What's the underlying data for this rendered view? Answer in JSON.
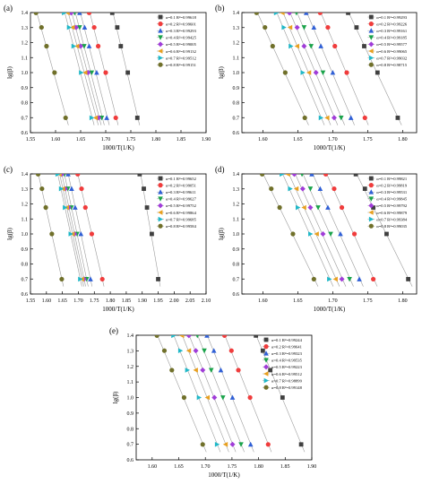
{
  "figure": {
    "panels": [
      "(a)",
      "(b)",
      "(c)",
      "(d)",
      "(e)"
    ]
  },
  "chart_data": [
    {
      "panel": "(a)",
      "type": "scatter",
      "xlabel": "1000/T(1/K)",
      "ylabel": "lg(β)",
      "xlim": [
        1.55,
        1.9
      ],
      "ylim": [
        0.6,
        1.4
      ],
      "xticks": [
        "1.55",
        "1.60",
        "1.65",
        "1.70",
        "1.75",
        "1.80",
        "1.85",
        "1.90"
      ],
      "yticks": [
        "0.6",
        "0.7",
        "0.8",
        "0.9",
        "1.0",
        "1.1",
        "1.2",
        "1.3",
        "1.4"
      ],
      "legend_position": "top-right",
      "series": [
        {
          "name": "α=0.1 R²=0.99618",
          "color": "#404040",
          "marker": "square",
          "x": [
            1.763,
            1.744,
            1.73,
            1.723,
            1.713
          ],
          "y": [
            0.699,
            1.0,
            1.176,
            1.301,
            1.398
          ]
        },
        {
          "name": "α=0.2 R²=0.99601",
          "color": "#f03c3c",
          "marker": "circle",
          "x": [
            1.72,
            1.7,
            1.685,
            1.677,
            1.667
          ],
          "y": [
            0.699,
            1.0,
            1.176,
            1.301,
            1.398
          ]
        },
        {
          "name": "α=0.3 R²=0.99293",
          "color": "#2f5fd6",
          "marker": "triangle",
          "x": [
            1.702,
            1.682,
            1.667,
            1.658,
            1.648
          ],
          "y": [
            0.699,
            1.0,
            1.176,
            1.301,
            1.398
          ]
        },
        {
          "name": "α=0.4 R²=0.99425",
          "color": "#1aa34a",
          "marker": "triangle-down",
          "x": [
            1.692,
            1.672,
            1.657,
            1.648,
            1.638
          ],
          "y": [
            0.699,
            1.0,
            1.176,
            1.301,
            1.398
          ]
        },
        {
          "name": "α=0.5 R²=0.99005",
          "color": "#a03cd8",
          "marker": "diamond",
          "x": [
            1.686,
            1.665,
            1.65,
            1.641,
            1.631
          ],
          "y": [
            0.699,
            1.0,
            1.176,
            1.301,
            1.398
          ]
        },
        {
          "name": "α=0.6 R²=0.99132",
          "color": "#e8a020",
          "marker": "triangle-left",
          "x": [
            1.68,
            1.659,
            1.643,
            1.634,
            1.624
          ],
          "y": [
            0.699,
            1.0,
            1.176,
            1.301,
            1.398
          ]
        },
        {
          "name": "α=0.7 R²=0.99512",
          "color": "#20b8c8",
          "marker": "triangle-right",
          "x": [
            1.672,
            1.651,
            1.636,
            1.627,
            1.617
          ],
          "y": [
            0.699,
            1.0,
            1.176,
            1.301,
            1.398
          ]
        },
        {
          "name": "α=0.8 R²=0.99151",
          "color": "#70702a",
          "marker": "circle",
          "x": [
            1.62,
            1.598,
            1.582,
            1.572,
            1.561
          ],
          "y": [
            0.699,
            1.0,
            1.176,
            1.301,
            1.398
          ]
        }
      ]
    },
    {
      "panel": "(b)",
      "type": "scatter",
      "xlabel": "1000/T(1/K)",
      "ylabel": "lg(β)",
      "xlim": [
        1.57,
        1.82
      ],
      "ylim": [
        0.6,
        1.4
      ],
      "xticks": [
        "1.60",
        "1.65",
        "1.70",
        "1.75",
        "1.80"
      ],
      "yticks": [
        "0.6",
        "0.7",
        "0.8",
        "0.9",
        "1.0",
        "1.1",
        "1.2",
        "1.3",
        "1.4"
      ],
      "legend_position": "top-right",
      "series": [
        {
          "name": "α=0.1 R²=0.99293",
          "color": "#404040",
          "marker": "square",
          "x": [
            1.793,
            1.764,
            1.745,
            1.734,
            1.722
          ],
          "y": [
            0.699,
            1.0,
            1.176,
            1.301,
            1.398
          ]
        },
        {
          "name": "α=0.2 R²=0.99226",
          "color": "#f03c3c",
          "marker": "circle",
          "x": [
            1.746,
            1.72,
            1.703,
            1.693,
            1.682
          ],
          "y": [
            0.699,
            1.0,
            1.176,
            1.301,
            1.398
          ]
        },
        {
          "name": "α=0.3 R²=0.99161",
          "color": "#2f5fd6",
          "marker": "triangle",
          "x": [
            1.726,
            1.7,
            1.683,
            1.673,
            1.662
          ],
          "y": [
            0.699,
            1.0,
            1.176,
            1.301,
            1.398
          ]
        },
        {
          "name": "α=0.4 R²=0.99185",
          "color": "#1aa34a",
          "marker": "triangle-down",
          "x": [
            1.712,
            1.686,
            1.669,
            1.659,
            1.648
          ],
          "y": [
            0.699,
            1.0,
            1.176,
            1.301,
            1.398
          ]
        },
        {
          "name": "α=0.5 R²=0.99577",
          "color": "#a03cd8",
          "marker": "diamond",
          "x": [
            1.702,
            1.676,
            1.659,
            1.649,
            1.638
          ],
          "y": [
            0.699,
            1.0,
            1.176,
            1.301,
            1.398
          ]
        },
        {
          "name": "α=0.6 R²=0.99065",
          "color": "#e8a020",
          "marker": "triangle-left",
          "x": [
            1.692,
            1.666,
            1.649,
            1.639,
            1.628
          ],
          "y": [
            0.699,
            1.0,
            1.176,
            1.301,
            1.398
          ]
        },
        {
          "name": "α=0.7 R²=0.99032",
          "color": "#20b8c8",
          "marker": "triangle-right",
          "x": [
            1.683,
            1.657,
            1.64,
            1.63,
            1.619
          ],
          "y": [
            0.699,
            1.0,
            1.176,
            1.301,
            1.398
          ]
        },
        {
          "name": "α=0.8 R²=0.98715",
          "color": "#70702a",
          "marker": "circle",
          "x": [
            1.66,
            1.632,
            1.614,
            1.603,
            1.591
          ],
          "y": [
            0.699,
            1.0,
            1.176,
            1.301,
            1.398
          ]
        }
      ]
    },
    {
      "panel": "(c)",
      "type": "scatter",
      "xlabel": "1000/T(1/K)",
      "ylabel": "lg(β)",
      "xlim": [
        1.55,
        2.1
      ],
      "ylim": [
        0.6,
        1.4
      ],
      "xticks": [
        "1.55",
        "1.60",
        "1.65",
        "1.70",
        "1.75",
        "1.80",
        "1.85",
        "1.90",
        "1.95",
        "2.00",
        "2.05",
        "2.10"
      ],
      "yticks": [
        "0.6",
        "0.7",
        "0.8",
        "0.9",
        "1.0",
        "1.1",
        "1.2",
        "1.3",
        "1.4"
      ],
      "legend_position": "top-right",
      "series": [
        {
          "name": "α=0.1 R²=0.99652",
          "color": "#404040",
          "marker": "square",
          "x": [
            1.95,
            1.93,
            1.915,
            1.905,
            1.892
          ],
          "y": [
            0.699,
            1.0,
            1.176,
            1.301,
            1.398
          ]
        },
        {
          "name": "α=0.2 R²=0.99051",
          "color": "#f03c3c",
          "marker": "circle",
          "x": [
            1.775,
            1.742,
            1.722,
            1.71,
            1.698
          ],
          "y": [
            0.699,
            1.0,
            1.176,
            1.301,
            1.398
          ]
        },
        {
          "name": "α=0.3 R²=0.99611",
          "color": "#2f5fd6",
          "marker": "triangle",
          "x": [
            1.738,
            1.708,
            1.69,
            1.679,
            1.668
          ],
          "y": [
            0.699,
            1.0,
            1.176,
            1.301,
            1.398
          ]
        },
        {
          "name": "α=0.4 R²=0.99627",
          "color": "#1aa34a",
          "marker": "triangle-down",
          "x": [
            1.726,
            1.696,
            1.678,
            1.667,
            1.656
          ],
          "y": [
            0.699,
            1.0,
            1.176,
            1.301,
            1.398
          ]
        },
        {
          "name": "α=0.5 R²=0.99752",
          "color": "#a03cd8",
          "marker": "diamond",
          "x": [
            1.718,
            1.688,
            1.67,
            1.659,
            1.648
          ],
          "y": [
            0.699,
            1.0,
            1.176,
            1.301,
            1.398
          ]
        },
        {
          "name": "α=0.6 R²=0.99864",
          "color": "#e8a020",
          "marker": "triangle-left",
          "x": [
            1.712,
            1.682,
            1.664,
            1.652,
            1.641
          ],
          "y": [
            0.699,
            1.0,
            1.176,
            1.301,
            1.398
          ]
        },
        {
          "name": "α=0.7 R²=0.99685",
          "color": "#20b8c8",
          "marker": "triangle-right",
          "x": [
            1.706,
            1.676,
            1.658,
            1.646,
            1.635
          ],
          "y": [
            0.699,
            1.0,
            1.176,
            1.301,
            1.398
          ]
        },
        {
          "name": "α=0.8 R²=0.99584",
          "color": "#70702a",
          "marker": "circle",
          "x": [
            1.648,
            1.617,
            1.598,
            1.586,
            1.574
          ],
          "y": [
            0.699,
            1.0,
            1.176,
            1.301,
            1.398
          ]
        }
      ]
    },
    {
      "panel": "(d)",
      "type": "scatter",
      "xlabel": "1000/T(1/K)",
      "ylabel": "lg(β)",
      "xlim": [
        1.57,
        1.82
      ],
      "ylim": [
        0.6,
        1.4
      ],
      "xticks": [
        "1.60",
        "1.65",
        "1.70",
        "1.75",
        "1.80"
      ],
      "yticks": [
        "0.6",
        "0.7",
        "0.8",
        "0.9",
        "1.0",
        "1.1",
        "1.2",
        "1.3",
        "1.4"
      ],
      "legend_position": "top-right",
      "series": [
        {
          "name": "α=0.1 R²=0.99821",
          "color": "#404040",
          "marker": "square",
          "x": [
            1.808,
            1.777,
            1.758,
            1.746,
            1.733
          ],
          "y": [
            0.699,
            1.0,
            1.176,
            1.301,
            1.398
          ]
        },
        {
          "name": "α=0.2 R²=0.99819",
          "color": "#f03c3c",
          "marker": "circle",
          "x": [
            1.758,
            1.731,
            1.713,
            1.702,
            1.69
          ],
          "y": [
            0.699,
            1.0,
            1.176,
            1.301,
            1.398
          ]
        },
        {
          "name": "α=0.3 R²=0.99531",
          "color": "#2f5fd6",
          "marker": "triangle",
          "x": [
            1.738,
            1.711,
            1.693,
            1.682,
            1.67
          ],
          "y": [
            0.699,
            1.0,
            1.176,
            1.301,
            1.398
          ]
        },
        {
          "name": "α=0.4 R²=0.99845",
          "color": "#1aa34a",
          "marker": "triangle-down",
          "x": [
            1.724,
            1.697,
            1.679,
            1.668,
            1.656
          ],
          "y": [
            0.699,
            1.0,
            1.176,
            1.301,
            1.398
          ]
        },
        {
          "name": "α=0.5 R²=0.99792",
          "color": "#a03cd8",
          "marker": "diamond",
          "x": [
            1.713,
            1.686,
            1.668,
            1.657,
            1.645
          ],
          "y": [
            0.699,
            1.0,
            1.176,
            1.301,
            1.398
          ]
        },
        {
          "name": "α=0.6 R²=0.99879",
          "color": "#e8a020",
          "marker": "triangle-left",
          "x": [
            1.704,
            1.677,
            1.659,
            1.648,
            1.636
          ],
          "y": [
            0.699,
            1.0,
            1.176,
            1.301,
            1.398
          ]
        },
        {
          "name": "α=0.7 R²=0.99384",
          "color": "#20b8c8",
          "marker": "triangle-right",
          "x": [
            1.695,
            1.668,
            1.65,
            1.639,
            1.627
          ],
          "y": [
            0.699,
            1.0,
            1.176,
            1.301,
            1.398
          ]
        },
        {
          "name": "α=0.8 R²=0.99035",
          "color": "#70702a",
          "marker": "circle",
          "x": [
            1.673,
            1.643,
            1.624,
            1.612,
            1.599
          ],
          "y": [
            0.699,
            1.0,
            1.176,
            1.301,
            1.398
          ]
        }
      ]
    },
    {
      "panel": "(e)",
      "type": "scatter",
      "xlabel": "1000/T(1/K)",
      "ylabel": "lg(β)",
      "xlim": [
        1.57,
        1.9
      ],
      "ylim": [
        0.6,
        1.4
      ],
      "xticks": [
        "1.60",
        "1.65",
        "1.70",
        "1.75",
        "1.80",
        "1.85",
        "1.90"
      ],
      "yticks": [
        "0.6",
        "0.7",
        "0.8",
        "0.9",
        "1.0",
        "1.1",
        "1.2",
        "1.3",
        "1.4"
      ],
      "legend_position": "top-right",
      "series": [
        {
          "name": "α=0.1 R²=0.99244",
          "color": "#404040",
          "marker": "square",
          "x": [
            1.88,
            1.845,
            1.822,
            1.808,
            1.795
          ],
          "y": [
            0.699,
            1.0,
            1.176,
            1.301,
            1.398
          ]
        },
        {
          "name": "α=0.2 R²=0.99641",
          "color": "#f03c3c",
          "marker": "circle",
          "x": [
            1.818,
            1.784,
            1.762,
            1.749,
            1.736
          ],
          "y": [
            0.699,
            1.0,
            1.176,
            1.301,
            1.398
          ]
        },
        {
          "name": "α=0.3 R²=0.99323",
          "color": "#2f5fd6",
          "marker": "triangle",
          "x": [
            1.785,
            1.751,
            1.729,
            1.716,
            1.703
          ],
          "y": [
            0.699,
            1.0,
            1.176,
            1.301,
            1.398
          ]
        },
        {
          "name": "α=0.4 R²=0.99535",
          "color": "#1aa34a",
          "marker": "triangle-down",
          "x": [
            1.767,
            1.733,
            1.711,
            1.698,
            1.685
          ],
          "y": [
            0.699,
            1.0,
            1.176,
            1.301,
            1.398
          ]
        },
        {
          "name": "α=0.5 R²=0.99223",
          "color": "#a03cd8",
          "marker": "diamond",
          "x": [
            1.751,
            1.717,
            1.695,
            1.682,
            1.669
          ],
          "y": [
            0.699,
            1.0,
            1.176,
            1.301,
            1.398
          ]
        },
        {
          "name": "α=0.6 R²=0.99512",
          "color": "#e8a020",
          "marker": "triangle-left",
          "x": [
            1.738,
            1.704,
            1.682,
            1.669,
            1.656
          ],
          "y": [
            0.699,
            1.0,
            1.176,
            1.301,
            1.398
          ]
        },
        {
          "name": "α=0.7 R²=0.98899",
          "color": "#20b8c8",
          "marker": "triangle-right",
          "x": [
            1.722,
            1.688,
            1.666,
            1.653,
            1.64
          ],
          "y": [
            0.699,
            1.0,
            1.176,
            1.301,
            1.398
          ]
        },
        {
          "name": "α=0.8 R²=0.99148",
          "color": "#70702a",
          "marker": "circle",
          "x": [
            1.695,
            1.66,
            1.637,
            1.623,
            1.609
          ],
          "y": [
            0.699,
            1.0,
            1.176,
            1.301,
            1.398
          ]
        }
      ]
    }
  ]
}
